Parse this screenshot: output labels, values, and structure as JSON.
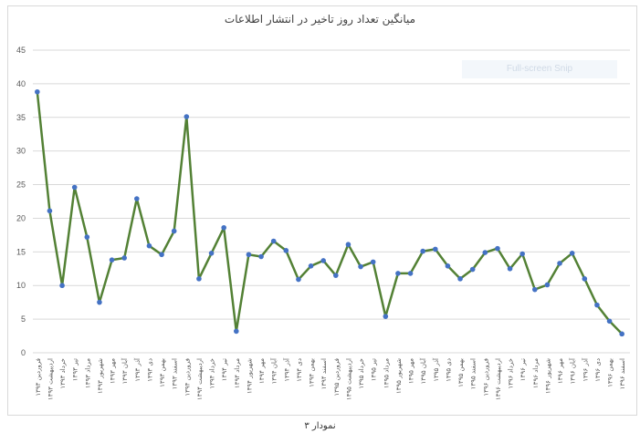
{
  "watermark": "Full-screen Snip",
  "caption": "نمودار ۳",
  "chart_data": {
    "type": "line",
    "title": "میانگین تعداد روز تاخیر در انتشار اطلاعات",
    "xlabel": "",
    "ylabel": "",
    "ylim": [
      0,
      45
    ],
    "yticks": [
      0,
      5,
      10,
      15,
      20,
      25,
      30,
      35,
      40,
      45
    ],
    "grid": true,
    "legend": "none",
    "line_color": "#538135",
    "marker_color": "#4472c4",
    "categories": [
      "فروردین ۱۳۹۳",
      "اردیبهشت ۱۳۹۳",
      "خرداد ۱۳۹۳",
      "تیر ۱۳۹۳",
      "مرداد ۱۳۹۳",
      "شهریور ۱۳۹۳",
      "مهر ۱۳۹۳",
      "آبان ۱۳۹۳",
      "آذر ۱۳۹۳",
      "دی ۱۳۹۳",
      "بهمن ۱۳۹۳",
      "اسفند ۱۳۹۳",
      "فروردین ۱۳۹۴",
      "اردیبهشت ۱۳۹۴",
      "خرداد ۱۳۹۴",
      "تیر ۱۳۹۴",
      "مرداد ۱۳۹۴",
      "شهریور ۱۳۹۴",
      "مهر ۱۳۹۴",
      "آبان ۱۳۹۴",
      "آذر ۱۳۹۴",
      "دی ۱۳۹۴",
      "بهمن ۱۳۹۴",
      "اسفند ۱۳۹۴",
      "فروردین ۱۳۹۵",
      "اردیبهشت ۱۳۹۵",
      "خرداد ۱۳۹۵",
      "تیر ۱۳۹۵",
      "مرداد ۱۳۹۵",
      "شهریور ۱۳۹۵",
      "مهر ۱۳۹۵",
      "آبان ۱۳۹۵",
      "آذر ۱۳۹۵",
      "دی ۱۳۹۵",
      "بهمن ۱۳۹۵",
      "اسفند ۱۳۹۵",
      "فروردین ۱۳۹۶",
      "اردیبهشت ۱۳۹۶",
      "خرداد ۱۳۹۶",
      "تیر ۱۳۹۶",
      "مرداد ۱۳۹۶",
      "شهریور ۱۳۹۶",
      "مهر ۱۳۹۶",
      "آبان ۱۳۹۶",
      "آذر ۱۳۹۶",
      "دی ۱۳۹۶",
      "بهمن ۱۳۹۶",
      "اسفند ۱۳۹۶"
    ],
    "values": [
      38.8,
      21.1,
      10.0,
      24.6,
      17.2,
      7.5,
      13.8,
      14.1,
      22.9,
      15.9,
      14.6,
      18.1,
      35.1,
      11.0,
      14.8,
      18.6,
      3.2,
      14.6,
      14.3,
      16.6,
      15.2,
      10.9,
      12.9,
      13.7,
      11.5,
      16.1,
      12.8,
      13.5,
      5.4,
      11.8,
      11.8,
      15.1,
      15.4,
      12.9,
      11.0,
      12.4,
      14.9,
      15.5,
      12.5,
      14.7,
      9.4,
      10.1,
      13.3,
      14.8,
      11.0,
      7.1,
      4.7,
      2.8
    ]
  }
}
